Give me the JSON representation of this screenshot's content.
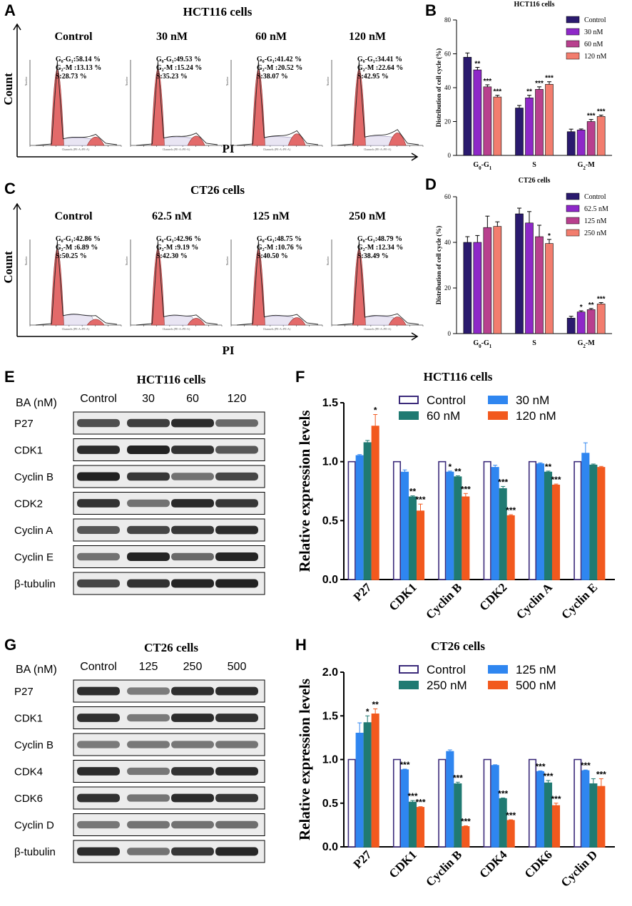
{
  "colors": {
    "control": "#2a1a6e",
    "c30": "#8e28c8",
    "c60": "#b8408e",
    "c120": "#f27d6e",
    "f_control": "#3b2a7a",
    "f_c30": "#2f86f0",
    "f_c60": "#207a72",
    "f_c120": "#f2591e",
    "peak": "#e36a6a",
    "blot_band": "#222222"
  },
  "panelA": {
    "letter": "A",
    "title": "HCT116 cells",
    "ylabel": "Count",
    "xlabel": "PI",
    "hist_axis_label": "Channels (PE-A::PE-A)",
    "hist_y_label": "Number",
    "conditions": [
      "Control",
      "30 nM",
      "60 nM",
      "120 nM"
    ],
    "stats": [
      {
        "g0": "G₀-G₁:58.14 %",
        "g2": "G₂-M :13.13 %",
        "s": "S:28.73 %"
      },
      {
        "g0": "G₀-G₁:49.53 %",
        "g2": "G₂-M :15.24 %",
        "s": "S:35.23 %"
      },
      {
        "g0": "G₀-G₁:41.42 %",
        "g2": "G₂-M :20.52 %",
        "s": "S:38.07 %"
      },
      {
        "g0": "G₀-G₁:34.41 %",
        "g2": "G₂-M :22.64 %",
        "s": "S:42.95 %"
      }
    ]
  },
  "panelC": {
    "letter": "C",
    "title": "CT26 cells",
    "ylabel": "Count",
    "xlabel": "PI",
    "hist_axis_label": "Channels (PE-A::PE-A)",
    "hist_y_label": "Number",
    "conditions": [
      "Control",
      "62.5 nM",
      "125 nM",
      "250 nM"
    ],
    "stats": [
      {
        "g0": "G₀-G₁:42.86 %",
        "g2": "G₂-M :6.89 %",
        "s": "S:50.25 %"
      },
      {
        "g0": "G₀-G₁:42.96 %",
        "g2": "G₂-M :9.19 %",
        "s": "S:42.30 %"
      },
      {
        "g0": "G₀-G₁:48.75 %",
        "g2": "G₂-M :10.76 %",
        "s": "S:40.50 %"
      },
      {
        "g0": "G₀-G₁:48.79 %",
        "g2": "G₂-M :12.34 %",
        "s": "S:38.49 %"
      }
    ]
  },
  "panelE": {
    "letter": "E",
    "title": "HCT116 cells",
    "ba_label": "BA (nM)",
    "lanes": [
      "Control",
      "30",
      "60",
      "120"
    ],
    "proteins": [
      "P27",
      "CDK1",
      "Cyclin B",
      "CDK2",
      "Cyclin A",
      "Cyclin E",
      "β-tubulin"
    ]
  },
  "panelG": {
    "letter": "G",
    "title": "CT26 cells",
    "ba_label": "BA (nM)",
    "lanes": [
      "Control",
      "125",
      "250",
      "500"
    ],
    "proteins": [
      "P27",
      "CDK1",
      "Cyclin B",
      "CDK4",
      "CDK6",
      "Cyclin D",
      "β-tubulin"
    ]
  },
  "chart_data": [
    {
      "panel": "B",
      "type": "bar",
      "title": "HCT116 cells",
      "xlabel": "",
      "ylabel": "Distribution of cell cycle (%)",
      "ylim": [
        0,
        80
      ],
      "yticks": [
        0,
        20,
        40,
        60,
        80
      ],
      "categories": [
        "G₀-G₁",
        "S",
        "G₂-M"
      ],
      "legend_position": "top-right",
      "series": [
        {
          "name": "Control",
          "values": [
            58,
            28,
            14
          ],
          "errors": [
            2.5,
            1.5,
            1.5
          ],
          "sig": [
            "",
            "",
            ""
          ]
        },
        {
          "name": "30 nM",
          "values": [
            50.5,
            34,
            15
          ],
          "errors": [
            1.5,
            1.5,
            0.6
          ],
          "sig": [
            "**",
            "**",
            ""
          ]
        },
        {
          "name": "60 nM",
          "values": [
            40.5,
            39,
            20
          ],
          "errors": [
            1.2,
            1.5,
            1.2
          ],
          "sig": [
            "***",
            "***",
            "***"
          ]
        },
        {
          "name": "120 nM",
          "values": [
            34.5,
            42,
            23
          ],
          "errors": [
            1.0,
            1.5,
            0.8
          ],
          "sig": [
            "***",
            "***",
            "***"
          ]
        }
      ]
    },
    {
      "panel": "D",
      "type": "bar",
      "title": "CT26 cells",
      "xlabel": "",
      "ylabel": "Distribution of cell cycle (%)",
      "ylim": [
        0,
        60
      ],
      "yticks": [
        0,
        20,
        40,
        60
      ],
      "categories": [
        "G₀-G₁",
        "S",
        "G₂-M"
      ],
      "legend_position": "top-right",
      "series": [
        {
          "name": "Control",
          "values": [
            40,
            52.5,
            6.8
          ],
          "errors": [
            2.5,
            2.5,
            0.8
          ],
          "sig": [
            "",
            "",
            ""
          ]
        },
        {
          "name": "62.5 nM",
          "values": [
            40,
            48.5,
            9.5
          ],
          "errors": [
            3.0,
            5.0,
            0.5
          ],
          "sig": [
            "",
            "",
            "*"
          ]
        },
        {
          "name": "125 nM",
          "values": [
            46.5,
            42.5,
            10.5
          ],
          "errors": [
            5.0,
            5.0,
            0.5
          ],
          "sig": [
            "",
            "",
            "**"
          ]
        },
        {
          "name": "250 nM",
          "values": [
            47,
            39.5,
            13
          ],
          "errors": [
            2.0,
            1.8,
            0.6
          ],
          "sig": [
            "",
            "*",
            "***"
          ]
        }
      ]
    },
    {
      "panel": "F",
      "type": "bar",
      "title": "HCT116 cells",
      "xlabel": "",
      "ylabel": "Relative expression levels",
      "ylim": [
        0,
        1.5
      ],
      "yticks": [
        0.0,
        0.5,
        1.0,
        1.5
      ],
      "categories": [
        "P27",
        "CDK1",
        "Cyclin B",
        "CDK2",
        "Cyclin A",
        "Cyclin E"
      ],
      "legend_position": "top",
      "series": [
        {
          "name": "Control",
          "values": [
            1.0,
            1.0,
            1.0,
            1.0,
            1.0,
            1.0
          ],
          "errors": [
            0,
            0,
            0,
            0,
            0,
            0
          ],
          "sig": [
            "",
            "",
            "",
            "",
            "",
            ""
          ]
        },
        {
          "name": "30 nM",
          "values": [
            1.05,
            0.91,
            0.91,
            0.95,
            0.98,
            1.07
          ],
          "errors": [
            0.01,
            0.02,
            0.01,
            0.02,
            0.01,
            0.09
          ],
          "sig": [
            "",
            "",
            "*",
            "",
            "",
            ""
          ]
        },
        {
          "name": "60 nM",
          "values": [
            1.16,
            0.7,
            0.87,
            0.77,
            0.91,
            0.97
          ],
          "errors": [
            0.02,
            0.01,
            0.01,
            0.02,
            0.01,
            0.01
          ],
          "sig": [
            "",
            "**",
            "**",
            "***",
            "**",
            ""
          ]
        },
        {
          "name": "120 nM",
          "values": [
            1.3,
            0.58,
            0.7,
            0.54,
            0.8,
            0.95
          ],
          "errors": [
            0.1,
            0.06,
            0.03,
            0.01,
            0.01,
            0.01
          ],
          "sig": [
            "*",
            "***",
            "***",
            "***",
            "***",
            ""
          ]
        }
      ]
    },
    {
      "panel": "H",
      "type": "bar",
      "title": "CT26 cells",
      "xlabel": "",
      "ylabel": "Relative expression levels",
      "ylim": [
        0,
        2.0
      ],
      "yticks": [
        0.0,
        0.5,
        1.0,
        1.5,
        2.0
      ],
      "categories": [
        "P27",
        "CDK1",
        "Cyclin B",
        "CDK4",
        "CDK6",
        "Cyclin D"
      ],
      "legend_position": "top",
      "series": [
        {
          "name": "Control",
          "values": [
            1.0,
            1.0,
            1.0,
            1.0,
            1.0,
            1.0
          ],
          "errors": [
            0,
            0,
            0,
            0,
            0,
            0
          ],
          "sig": [
            "",
            "",
            "",
            "",
            "",
            ""
          ]
        },
        {
          "name": "125 nM",
          "values": [
            1.3,
            0.88,
            1.09,
            0.93,
            0.86,
            0.87
          ],
          "errors": [
            0.12,
            0.01,
            0.02,
            0.01,
            0.01,
            0.01
          ],
          "sig": [
            "",
            "***",
            "",
            "",
            "***",
            "***"
          ]
        },
        {
          "name": "250 nM",
          "values": [
            1.42,
            0.51,
            0.72,
            0.55,
            0.73,
            0.72
          ],
          "errors": [
            0.08,
            0.02,
            0.02,
            0.01,
            0.03,
            0.06
          ],
          "sig": [
            "*",
            "***",
            "***",
            "***",
            "***",
            ""
          ]
        },
        {
          "name": "500 nM",
          "values": [
            1.52,
            0.45,
            0.23,
            0.3,
            0.47,
            0.69
          ],
          "errors": [
            0.06,
            0.01,
            0.01,
            0.01,
            0.03,
            0.09
          ],
          "sig": [
            "**",
            "***",
            "***",
            "***",
            "***",
            "***"
          ]
        }
      ]
    }
  ]
}
